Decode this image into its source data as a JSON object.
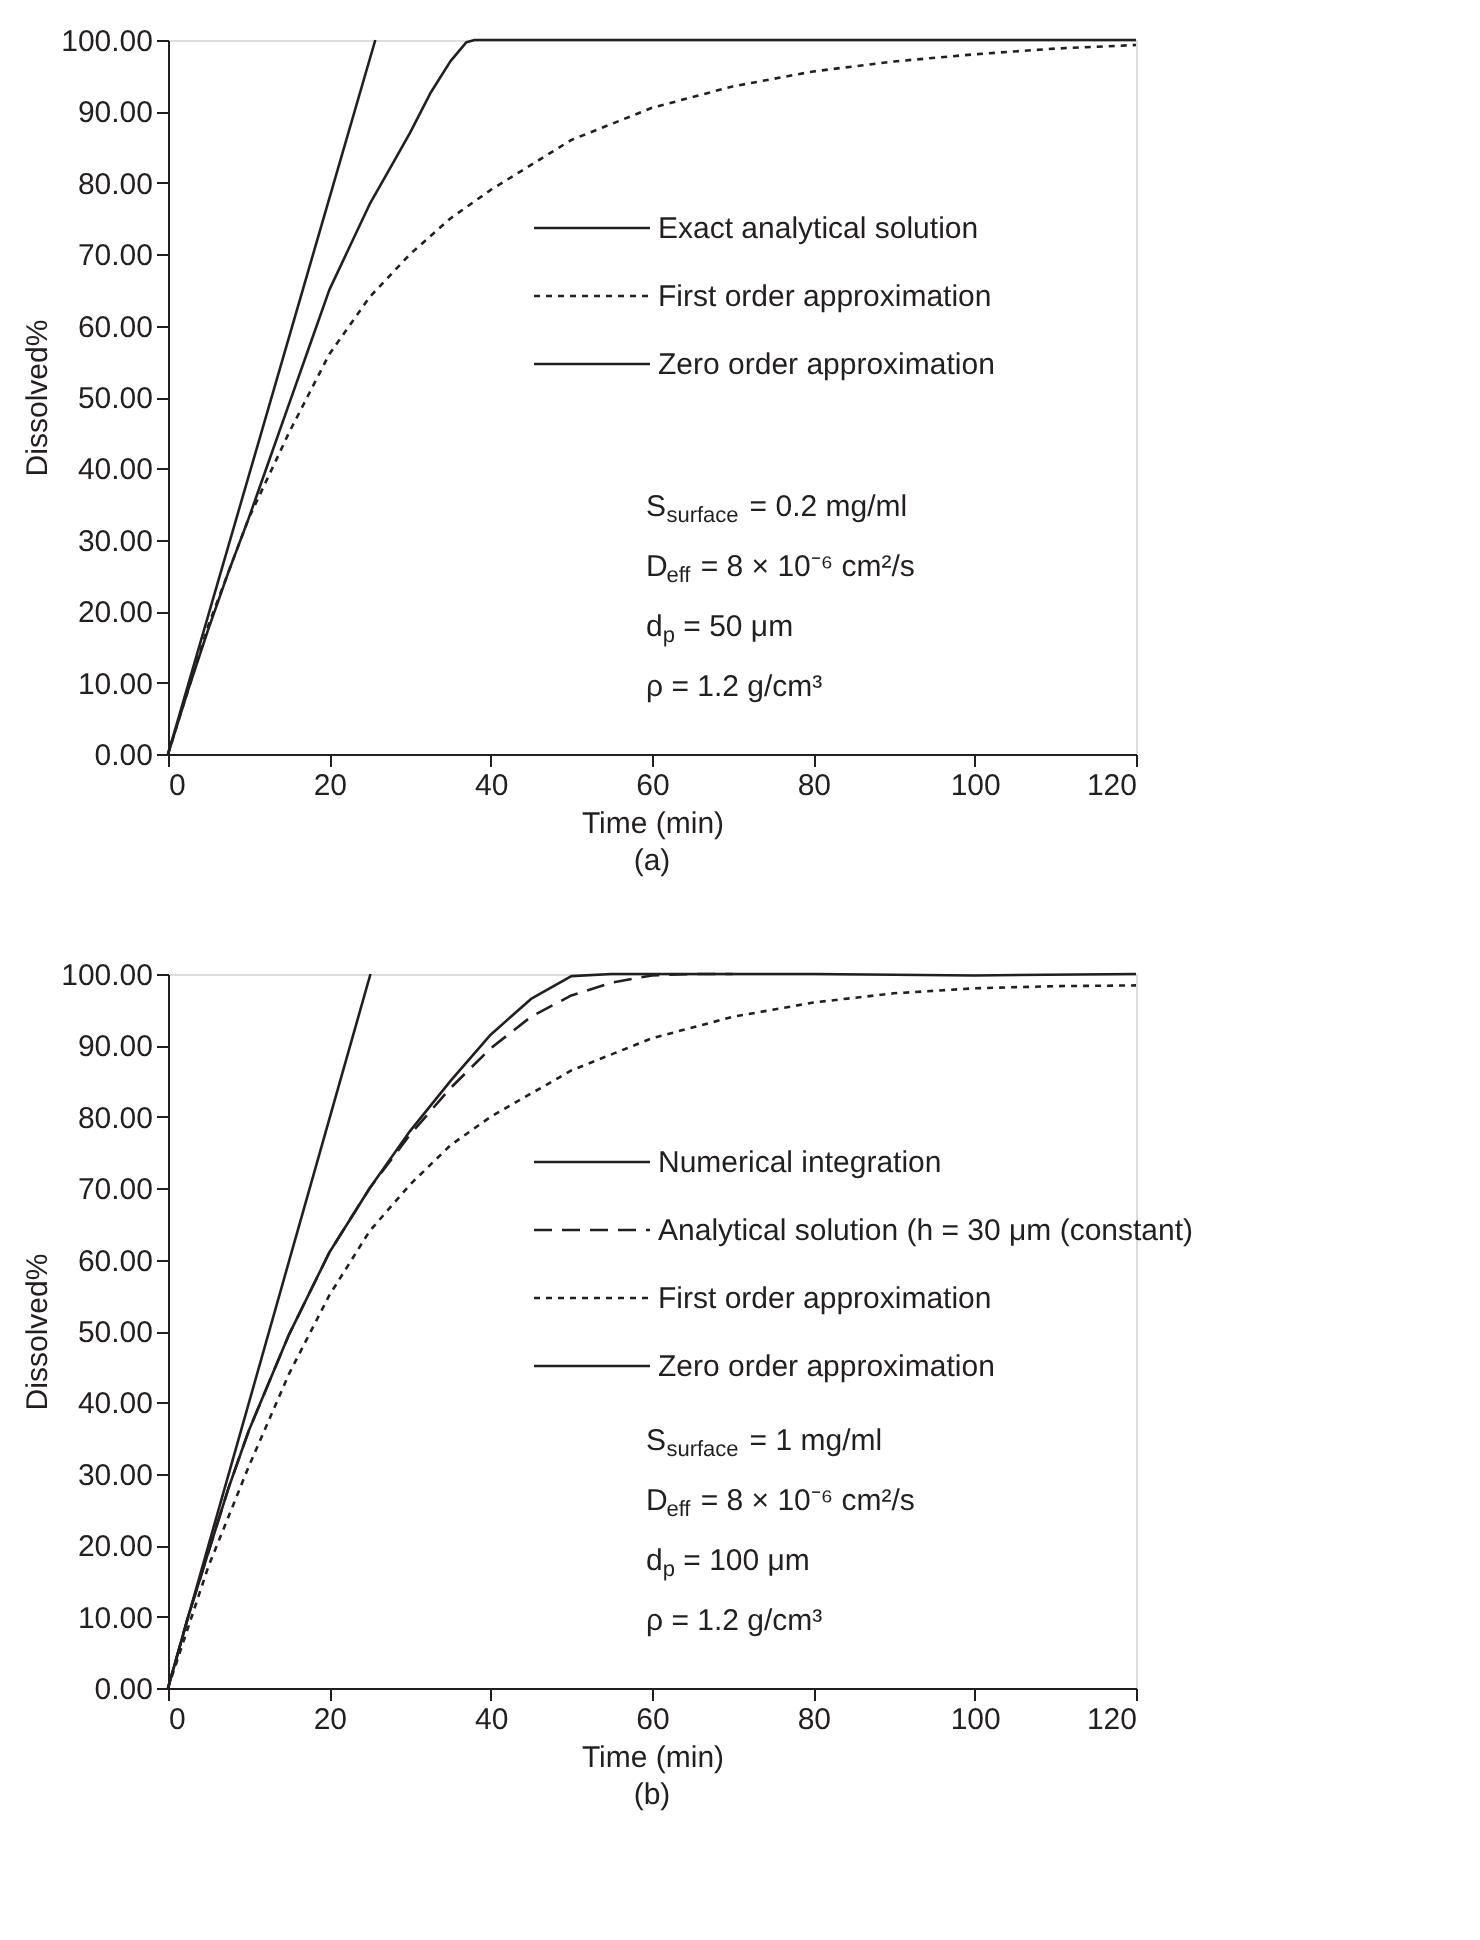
{
  "chart_data": [
    {
      "type": "line",
      "title": "(a)",
      "xlabel": "Time (min)",
      "ylabel": "Dissolved%",
      "legend": "right",
      "grid": false,
      "marker": "none",
      "xlim": [
        0,
        120
      ],
      "xticks": [
        0,
        20,
        40,
        60,
        80,
        100,
        120
      ],
      "ylim": [
        0,
        100
      ],
      "yticks": [
        {
          "value": 0,
          "label": "0.00"
        },
        {
          "value": 10,
          "label": "10.00"
        },
        {
          "value": 20,
          "label": "20.00"
        },
        {
          "value": 30,
          "label": "30.00"
        },
        {
          "value": 40,
          "label": "40.00"
        },
        {
          "value": 50,
          "label": "50.00"
        },
        {
          "value": 60,
          "label": "60.00"
        },
        {
          "value": 70,
          "label": "70.00"
        },
        {
          "value": 80,
          "label": "80.00"
        },
        {
          "value": 90,
          "label": "90.00"
        },
        {
          "value": 100,
          "label": "100.00"
        }
      ],
      "annotations": [
        "S$_{surface}$ = 0.2 mg/ml",
        "D$_{eff}$ = 8 × 10⁻⁶ cm²/s",
        "d$_{p}$ = 50 μm",
        "ρ = 1.2 g/cm³"
      ],
      "series": [
        {
          "name": "Exact analytical solution",
          "color": "#231f20",
          "line_style": "solid",
          "x": [
            0,
            2.5,
            5,
            7.5,
            10,
            12.5,
            15,
            17.5,
            20,
            22.5,
            25,
            27.5,
            30,
            32.5,
            35,
            37,
            38,
            40,
            60,
            80,
            100,
            120
          ],
          "values": [
            0,
            9,
            17.5,
            25.5,
            33,
            41,
            49,
            57,
            65,
            71,
            77,
            82,
            87,
            92.5,
            97,
            99.7,
            100,
            100,
            100,
            100,
            100,
            100
          ]
        },
        {
          "name": "First order approximation",
          "color": "#231f20",
          "line_style": "dotted",
          "x": [
            0,
            5,
            10,
            15,
            20,
            25,
            30,
            35,
            40,
            50,
            60,
            70,
            80,
            90,
            100,
            110,
            120
          ],
          "values": [
            0,
            18,
            33,
            45,
            56,
            64,
            70,
            75,
            79,
            86,
            90.5,
            93.5,
            95.6,
            97,
            98,
            98.8,
            99.3
          ]
        },
        {
          "name": "Zero order approximation",
          "color": "#231f20",
          "line_style": "solid",
          "x": [
            0,
            25.7
          ],
          "values": [
            0,
            100
          ]
        }
      ]
    },
    {
      "type": "line",
      "title": "(b)",
      "xlabel": "Time (min)",
      "ylabel": "Dissolved%",
      "legend": "right",
      "grid": false,
      "marker": "none",
      "xlim": [
        0,
        120
      ],
      "xticks": [
        0,
        20,
        40,
        60,
        80,
        100,
        120
      ],
      "ylim": [
        0,
        100
      ],
      "yticks": [
        {
          "value": 0,
          "label": "0.00"
        },
        {
          "value": 10,
          "label": "10.00"
        },
        {
          "value": 20,
          "label": "20.00"
        },
        {
          "value": 30,
          "label": "30.00"
        },
        {
          "value": 40,
          "label": "40.00"
        },
        {
          "value": 50,
          "label": "50.00"
        },
        {
          "value": 60,
          "label": "60.00"
        },
        {
          "value": 70,
          "label": "70.00"
        },
        {
          "value": 80,
          "label": "80.00"
        },
        {
          "value": 90,
          "label": "90.00"
        },
        {
          "value": 100,
          "label": "100.00"
        }
      ],
      "annotations": [
        "S$_{surface}$ = 1 mg/ml",
        "D$_{eff}$ = 8 × 10⁻⁶ cm²/s",
        "d$_{p}$ = 100 μm",
        "ρ = 1.2 g/cm³"
      ],
      "series": [
        {
          "name": "Numerical integration",
          "color": "#231f20",
          "line_style": "solid",
          "x": [
            0,
            2.5,
            5,
            7.5,
            10,
            15,
            20,
            25,
            30,
            35,
            40,
            45,
            50,
            55,
            60,
            80,
            100,
            120
          ],
          "values": [
            0,
            10,
            19,
            28,
            36,
            49.5,
            61,
            70,
            78,
            85,
            91.5,
            96.5,
            99.7,
            100,
            100,
            100,
            99.8,
            100
          ]
        },
        {
          "name": "Analytical solution (h = 30 μm (constant)",
          "color": "#231f20",
          "line_style": "dashed",
          "x": [
            0,
            2.5,
            5,
            7.5,
            10,
            15,
            20,
            25,
            30,
            35,
            40,
            45,
            50,
            55,
            60,
            65,
            70
          ],
          "values": [
            0,
            10,
            19,
            28,
            36,
            49.5,
            61,
            70,
            77.5,
            84,
            89.6,
            94,
            97,
            98.8,
            99.8,
            100,
            100
          ]
        },
        {
          "name": "First order approximation",
          "color": "#231f20",
          "line_style": "dotted",
          "x": [
            0,
            5,
            10,
            15,
            20,
            25,
            30,
            35,
            40,
            50,
            60,
            70,
            80,
            90,
            100,
            110,
            120
          ],
          "values": [
            0,
            17,
            31,
            44,
            55,
            64,
            70.5,
            76,
            80,
            86.5,
            91,
            94,
            96,
            97.3,
            98,
            98.3,
            98.4
          ]
        },
        {
          "name": "Zero order approximation",
          "color": "#231f20",
          "line_style": "solid",
          "x": [
            0,
            25.1
          ],
          "values": [
            0,
            100
          ]
        }
      ]
    }
  ]
}
